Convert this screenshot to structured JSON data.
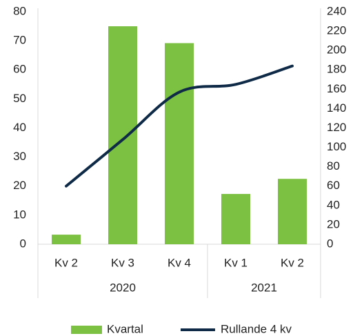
{
  "chart_data": {
    "type": "bar_line",
    "categories": [
      "Kv 2",
      "Kv 3",
      "Kv 4",
      "Kv 1",
      "Kv 2"
    ],
    "groups": [
      "2020",
      "2021"
    ],
    "group_spans": [
      3,
      2
    ],
    "series": [
      {
        "name": "Kvartal",
        "type": "bar",
        "color": "#7dc142",
        "values": [
          3.3,
          75,
          69.2,
          17.3,
          22.5
        ]
      },
      {
        "name": "Rullande 4 kv",
        "type": "line",
        "axis": "y2",
        "color": "#0e2a47",
        "values": [
          60,
          108,
          157,
          165,
          184
        ]
      }
    ],
    "ylim": [
      0,
      80
    ],
    "yticks": [
      0,
      10,
      20,
      30,
      40,
      50,
      60,
      70,
      80
    ],
    "y2lim": [
      0,
      240
    ],
    "y2ticks": [
      0,
      20,
      40,
      60,
      80,
      100,
      120,
      140,
      160,
      180,
      200,
      220,
      240
    ],
    "legend": "bottom"
  }
}
